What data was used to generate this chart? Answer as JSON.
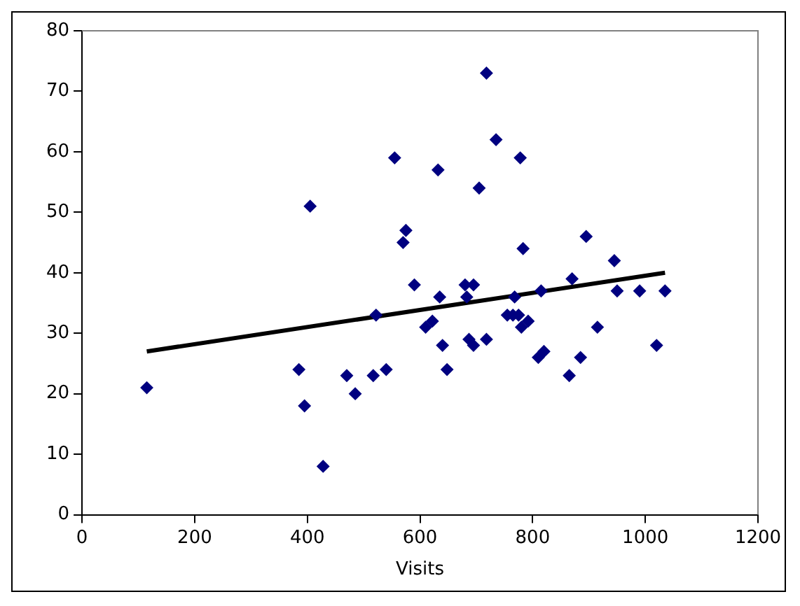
{
  "chart_data": {
    "type": "scatter",
    "xlabel": "Visits",
    "xlim": [
      0,
      1200
    ],
    "xticks": [
      0,
      200,
      400,
      600,
      800,
      1000,
      1200
    ],
    "ylim": [
      0,
      80
    ],
    "yticks": [
      0,
      10,
      20,
      30,
      40,
      50,
      60,
      70,
      80
    ],
    "grid": false,
    "legend": false,
    "marker": "diamond",
    "series": [
      {
        "color": "#000080",
        "x": [
          115,
          385,
          395,
          405,
          428,
          470,
          485,
          517,
          522,
          540,
          555,
          570,
          575,
          590,
          610,
          622,
          632,
          635,
          640,
          648,
          680,
          683,
          687,
          695,
          695,
          705,
          718,
          718,
          735,
          755,
          765,
          768,
          775,
          778,
          780,
          783,
          792,
          810,
          815,
          820,
          865,
          870,
          885,
          895,
          915,
          945,
          950,
          990,
          1020,
          1035
        ],
        "values": [
          21,
          24,
          18,
          51,
          8,
          23,
          20,
          23,
          33,
          24,
          59,
          45,
          47,
          38,
          31,
          32,
          57,
          36,
          28,
          24,
          38,
          36,
          29,
          28,
          38,
          54,
          73,
          29,
          62,
          33,
          33,
          36,
          33,
          59,
          31,
          44,
          32,
          26,
          37,
          27,
          23,
          39,
          26,
          46,
          31,
          42,
          37,
          37,
          28,
          37
        ]
      },
      {
        "type": "line",
        "color": "#000000",
        "marker": "none",
        "x": [
          115,
          1035
        ],
        "values": [
          27,
          40
        ]
      }
    ]
  }
}
